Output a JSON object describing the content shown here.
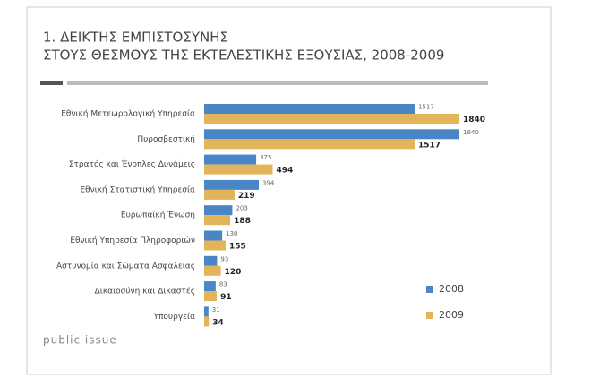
{
  "chart_data": {
    "type": "bar",
    "orientation": "horizontal",
    "title": "1. ΔΕΙΚΤΗΣ ΕΜΠΙΣΤΟΣΥΝΗΣ",
    "subtitle": "ΣΤΟΥΣ ΘΕΣΜΟΥΣ ΤΗΣ ΕΚΤΕΛΕΣΤΙΚΗΣ ΕΞΟΥΣΙΑΣ, 2008-2009",
    "categories": [
      "Εθνική Μετεωρολογική Υπηρεσία",
      "Πυροσβεστική",
      "Στρατός και Ένοπλες Δυνάμεις",
      "Εθνική Στατιστική Υπηρεσία",
      "Ευρωπαϊκή Ένωση",
      "Εθνική Υπηρεσία Πληροφοριών",
      "Αστυνομία και Σώματα Ασφαλείας",
      "Δικαιοσύνη και Δικαστές",
      "Υπουργεία"
    ],
    "series": [
      {
        "name": "2008",
        "color": "#4a86c5",
        "values": [
          1517,
          1840,
          375,
          394,
          203,
          130,
          93,
          83,
          31
        ]
      },
      {
        "name": "2009",
        "color": "#e2b55a",
        "values": [
          1840,
          1517,
          494,
          219,
          188,
          155,
          120,
          91,
          34
        ]
      }
    ],
    "legend": "lower right",
    "footer": "public issue"
  }
}
